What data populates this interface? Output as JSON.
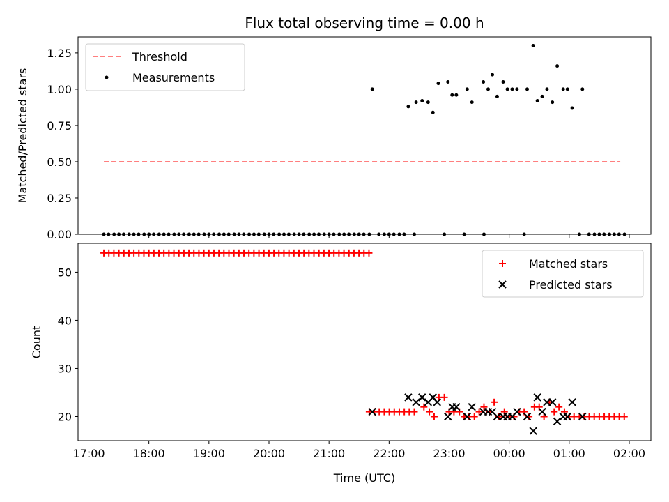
{
  "chart_data": [
    {
      "type": "scatter",
      "title": "Flux total observing time = 0.00 h",
      "xlabel": "",
      "ylabel": "Matched/Predicted stars",
      "xlim": [
        16.82,
        26.36
      ],
      "ylim": [
        0.0,
        1.36
      ],
      "yticks": [
        0.0,
        0.25,
        0.5,
        0.75,
        1.0,
        1.25
      ],
      "ytick_labels": [
        "0.00",
        "0.25",
        "0.50",
        "0.75",
        "1.00",
        "1.25"
      ],
      "legend_position": "upper-left",
      "threshold": {
        "name": "Threshold",
        "value": 0.5,
        "x_start": 17.25,
        "x_end": 25.85,
        "color": "#ff7f7f"
      },
      "series": [
        {
          "name": "Measurements",
          "color": "#000000",
          "marker": "dot",
          "zero_points": [
            17.25,
            17.33,
            17.42,
            17.5,
            17.58,
            17.67,
            17.75,
            17.83,
            17.92,
            18.0,
            18.08,
            18.17,
            18.25,
            18.33,
            18.42,
            18.5,
            18.58,
            18.67,
            18.75,
            18.83,
            18.92,
            19.0,
            19.08,
            19.17,
            19.25,
            19.33,
            19.42,
            19.5,
            19.58,
            19.67,
            19.75,
            19.83,
            19.92,
            20.0,
            20.08,
            20.17,
            20.25,
            20.33,
            20.42,
            20.5,
            20.58,
            20.67,
            20.75,
            20.83,
            20.92,
            21.0,
            21.08,
            21.17,
            21.25,
            21.33,
            21.42,
            21.5,
            21.58,
            21.67,
            21.83,
            21.92,
            22.0,
            22.08,
            22.17,
            22.25,
            22.42,
            22.92,
            23.25,
            23.58,
            24.25,
            25.17,
            25.33,
            25.42,
            25.5,
            25.58,
            25.67,
            25.75,
            25.83,
            25.92
          ],
          "points": [
            [
              21.72,
              1.0
            ],
            [
              22.32,
              0.88
            ],
            [
              22.45,
              0.91
            ],
            [
              22.55,
              0.92
            ],
            [
              22.65,
              0.91
            ],
            [
              22.73,
              0.84
            ],
            [
              22.82,
              1.04
            ],
            [
              22.98,
              1.05
            ],
            [
              23.05,
              0.96
            ],
            [
              23.12,
              0.96
            ],
            [
              23.3,
              1.0
            ],
            [
              23.38,
              0.91
            ],
            [
              23.57,
              1.05
            ],
            [
              23.65,
              1.0
            ],
            [
              23.72,
              1.1
            ],
            [
              23.8,
              0.95
            ],
            [
              23.9,
              1.05
            ],
            [
              23.97,
              1.0
            ],
            [
              24.05,
              1.0
            ],
            [
              24.13,
              1.0
            ],
            [
              24.3,
              1.0
            ],
            [
              24.4,
              1.3
            ],
            [
              24.47,
              0.92
            ],
            [
              24.55,
              0.95
            ],
            [
              24.63,
              1.0
            ],
            [
              24.72,
              0.91
            ],
            [
              24.8,
              1.16
            ],
            [
              24.9,
              1.0
            ],
            [
              24.97,
              1.0
            ],
            [
              25.05,
              0.87
            ],
            [
              25.22,
              1.0
            ]
          ]
        }
      ]
    },
    {
      "type": "scatter",
      "title": "",
      "xlabel": "Time (UTC)",
      "ylabel": "Count",
      "xlim": [
        16.82,
        26.36
      ],
      "ylim": [
        15.0,
        56.0
      ],
      "xticks": [
        17,
        18,
        19,
        20,
        21,
        22,
        23,
        24,
        25,
        26
      ],
      "xtick_labels": [
        "17:00",
        "18:00",
        "19:00",
        "20:00",
        "21:00",
        "22:00",
        "23:00",
        "00:00",
        "01:00",
        "02:00"
      ],
      "yticks": [
        20,
        30,
        40,
        50
      ],
      "ytick_labels": [
        "20",
        "30",
        "40",
        "50"
      ],
      "legend_position": "upper-right",
      "series": [
        {
          "name": "Matched stars",
          "color": "#ff0000",
          "marker": "plus",
          "constant_runs": [
            {
              "value": 54,
              "x_start": 17.25,
              "x_end": 21.67,
              "step": 0.0833
            },
            {
              "value": 21,
              "x_start": 21.67,
              "x_end": 22.5,
              "step": 0.0833
            },
            {
              "value": 20,
              "x_start": 25.25,
              "x_end": 25.92,
              "step": 0.0833
            }
          ],
          "points": [
            [
              22.58,
              22
            ],
            [
              22.67,
              21
            ],
            [
              22.75,
              20
            ],
            [
              22.83,
              24
            ],
            [
              22.92,
              24
            ],
            [
              23.0,
              21
            ],
            [
              23.08,
              21
            ],
            [
              23.17,
              21
            ],
            [
              23.25,
              20
            ],
            [
              23.33,
              20
            ],
            [
              23.42,
              20
            ],
            [
              23.5,
              21
            ],
            [
              23.58,
              22
            ],
            [
              23.67,
              21
            ],
            [
              23.75,
              23
            ],
            [
              23.83,
              20
            ],
            [
              23.92,
              21
            ],
            [
              24.0,
              20
            ],
            [
              24.08,
              20
            ],
            [
              24.17,
              21
            ],
            [
              24.25,
              21
            ],
            [
              24.33,
              20
            ],
            [
              24.42,
              22
            ],
            [
              24.5,
              22
            ],
            [
              24.58,
              20
            ],
            [
              24.67,
              23
            ],
            [
              24.75,
              21
            ],
            [
              24.83,
              22
            ],
            [
              24.92,
              21
            ],
            [
              25.0,
              20
            ],
            [
              25.08,
              20
            ],
            [
              25.17,
              20
            ]
          ]
        },
        {
          "name": "Predicted stars",
          "color": "#000000",
          "marker": "x",
          "points": [
            [
              21.72,
              21
            ],
            [
              22.32,
              24
            ],
            [
              22.45,
              23
            ],
            [
              22.55,
              24
            ],
            [
              22.65,
              23
            ],
            [
              22.73,
              24
            ],
            [
              22.8,
              23
            ],
            [
              22.98,
              20
            ],
            [
              23.05,
              22
            ],
            [
              23.12,
              22
            ],
            [
              23.3,
              20
            ],
            [
              23.38,
              22
            ],
            [
              23.57,
              21
            ],
            [
              23.65,
              21
            ],
            [
              23.72,
              21
            ],
            [
              23.8,
              20
            ],
            [
              23.9,
              20
            ],
            [
              23.97,
              20
            ],
            [
              24.05,
              20
            ],
            [
              24.13,
              21
            ],
            [
              24.3,
              20
            ],
            [
              24.4,
              17
            ],
            [
              24.47,
              24
            ],
            [
              24.55,
              21
            ],
            [
              24.63,
              23
            ],
            [
              24.72,
              23
            ],
            [
              24.8,
              19
            ],
            [
              24.9,
              20
            ],
            [
              24.97,
              20
            ],
            [
              25.05,
              23
            ],
            [
              25.22,
              20
            ]
          ]
        }
      ]
    }
  ]
}
